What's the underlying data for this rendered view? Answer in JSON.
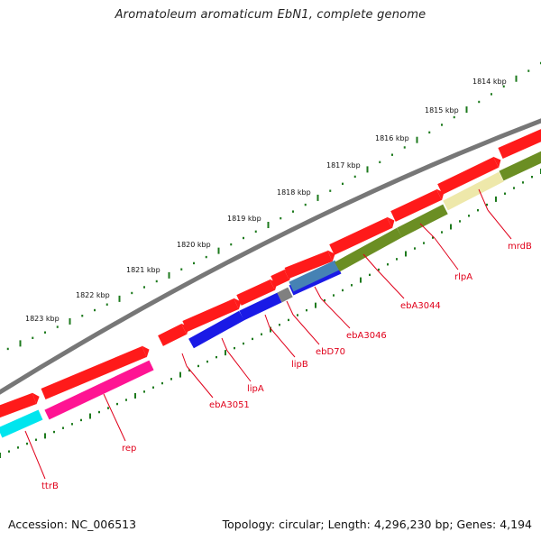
{
  "title": "Aromatoleum aromaticum EbN1, complete genome",
  "footer": {
    "accession": "Accession: NC_006513",
    "summary": "Topology: circular; Length: 4,296,230 bp; Genes: 4,194"
  },
  "scale_labels": [
    "1814 kbp",
    "1815 kbp",
    "1816 kbp",
    "1817 kbp",
    "1818 kbp",
    "1819 kbp",
    "1820 kbp",
    "1821 kbp",
    "1822 kbp",
    "1823 kbp"
  ],
  "gene_labels": [
    "mrdB",
    "rlpA",
    "ebA3044",
    "ebA3046",
    "ebD70",
    "lipB",
    "lipA",
    "ebA3051",
    "rep",
    "ttrB"
  ],
  "colors": {
    "backbone": "#777777",
    "forward_gene": "#ff1a1a",
    "ticks": "#1d7a1d",
    "olive": "#6b8e23",
    "pale_yellow": "#eee8aa",
    "blue": "#1a1ae6",
    "steel_blue": "#4682b4",
    "gray": "#808080",
    "magenta": "#ff1493",
    "cyan": "#00e5ee",
    "label": "#e0001a"
  }
}
